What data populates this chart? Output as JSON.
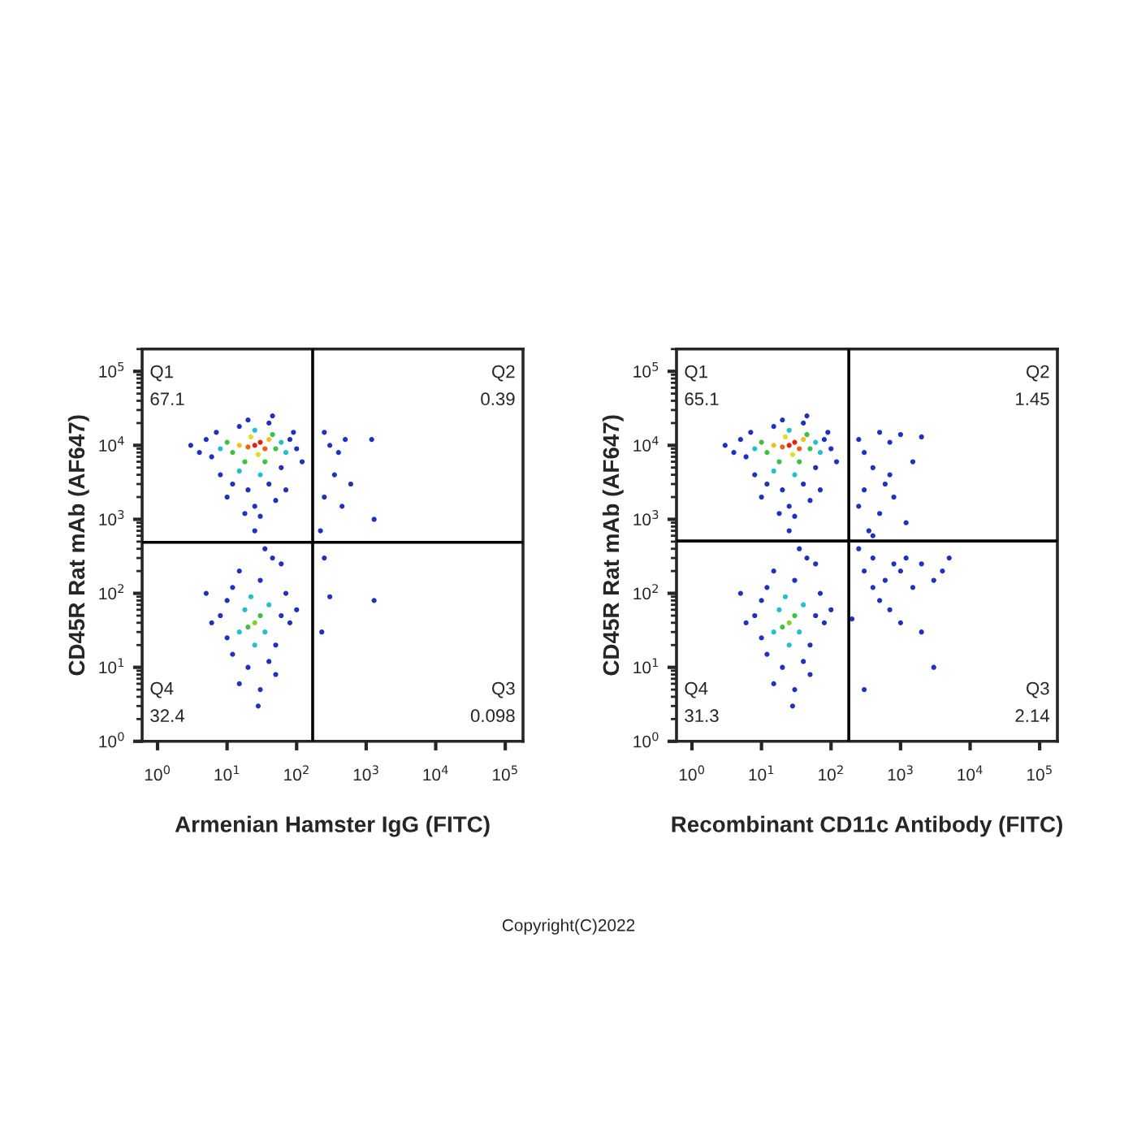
{
  "chart_data": [
    {
      "type": "scatter",
      "xlabel": "Armenian Hamster IgG (FITC)",
      "ylabel": "CD45R Rat mAb (AF647)",
      "log": "xy",
      "marker": "circle",
      "grid": false,
      "legend": false,
      "xlim": [
        0.6,
        180000
      ],
      "ylim": [
        1,
        200000
      ],
      "xticks": [
        {
          "value": 1,
          "label": "10$^{0}$"
        },
        {
          "value": 10,
          "label": "10$^{1}$"
        },
        {
          "value": 100,
          "label": "10$^{2}$"
        },
        {
          "value": 1000,
          "label": "10$^{3}$"
        },
        {
          "value": 10000,
          "label": "10$^{4}$"
        },
        {
          "value": 100000,
          "label": "10$^{5}$"
        }
      ],
      "yticks": [
        {
          "value": 1,
          "label": "10$^{0}$"
        },
        {
          "value": 10,
          "label": "10$^{1}$"
        },
        {
          "value": 100,
          "label": "10$^{2}$"
        },
        {
          "value": 1000,
          "label": "10$^{3}$"
        },
        {
          "value": 10000,
          "label": "10$^{4}$"
        },
        {
          "value": 100000,
          "label": "10$^{5}$"
        }
      ],
      "ref_lines": [
        {
          "axis": "x",
          "value": 170,
          "color": "#000000"
        },
        {
          "axis": "y",
          "value": 490,
          "color": "#000000"
        }
      ],
      "annotations": [
        "Q1\n67.1",
        "Q2\n0.39",
        "Q3\n0.098",
        "Q4\n32.4"
      ],
      "series": [
        {
          "x": [
            5,
            6,
            8,
            12,
            20,
            40,
            60,
            80,
            100,
            90,
            40,
            15,
            7,
            4,
            10,
            25,
            50,
            30,
            18,
            70,
            120,
            3,
            45,
            20,
            250,
            300,
            400,
            500,
            1200,
            350,
            600,
            250,
            450,
            1300,
            220,
            8,
            10,
            12,
            50,
            60,
            70,
            30,
            15,
            45,
            20,
            40,
            10,
            6,
            80,
            35,
            25,
            12,
            30,
            50,
            5,
            100,
            15,
            28,
            60,
            250,
            300,
            1300,
            230,
            12,
            50,
            18,
            35,
            10,
            45,
            8,
            60,
            15,
            30,
            25,
            70,
            15,
            40,
            28,
            22,
            18,
            35,
            15,
            40,
            25,
            22,
            20,
            30,
            25,
            25,
            30,
            20,
            35
          ],
          "values": [
            12000,
            7000,
            4000,
            3000,
            2500,
            3000,
            5000,
            12000,
            9000,
            15000,
            20000,
            18000,
            15000,
            8000,
            2000,
            1500,
            1800,
            1100,
            1200,
            2500,
            6000,
            10000,
            25000,
            22000,
            15000,
            10000,
            8000,
            12000,
            12000,
            4000,
            3000,
            2000,
            1500,
            1000,
            700,
            50,
            25,
            120,
            20,
            50,
            100,
            150,
            200,
            300,
            10,
            12,
            80,
            40,
            40,
            400,
            700,
            15,
            5,
            8,
            100,
            60,
            6,
            3,
            250,
            300,
            90,
            80,
            30,
            8000,
            9000,
            6000,
            6000,
            11000,
            14000,
            9000,
            11000,
            4500,
            4000,
            16000,
            8000,
            10000,
            12000,
            7500,
            13000,
            60,
            30,
            30,
            70,
            20,
            90,
            35,
            50,
            40,
            10000,
            11000,
            9500,
            9000
          ],
          "colors": [
            "#2030c0",
            "#2030c0",
            "#2030c0",
            "#2030c0",
            "#2030c0",
            "#2030c0",
            "#2030c0",
            "#2030c0",
            "#2030c0",
            "#2030c0",
            "#2030c0",
            "#2030c0",
            "#2030c0",
            "#2030c0",
            "#2030c0",
            "#2030c0",
            "#2030c0",
            "#2030c0",
            "#2030c0",
            "#2030c0",
            "#2030c0",
            "#2030c0",
            "#2030c0",
            "#2030c0",
            "#2030c0",
            "#2030c0",
            "#2030c0",
            "#2030c0",
            "#2030c0",
            "#2030c0",
            "#2030c0",
            "#2030c0",
            "#2030c0",
            "#2030c0",
            "#2030c0",
            "#2030c0",
            "#2030c0",
            "#2030c0",
            "#2030c0",
            "#2030c0",
            "#2030c0",
            "#2030c0",
            "#2030c0",
            "#2030c0",
            "#2030c0",
            "#2030c0",
            "#2030c0",
            "#2030c0",
            "#2030c0",
            "#2030c0",
            "#2030c0",
            "#2030c0",
            "#2030c0",
            "#2030c0",
            "#2030c0",
            "#2030c0",
            "#2030c0",
            "#2030c0",
            "#2030c0",
            "#2030c0",
            "#2030c0",
            "#2030c0",
            "#2030c0",
            "#40c040",
            "#40c040",
            "#40c040",
            "#40c040",
            "#40c040",
            "#40c040",
            "#20c0d0",
            "#20c0d0",
            "#20c0d0",
            "#20c0d0",
            "#20c0d0",
            "#20c0d0",
            "#f0c020",
            "#f0c020",
            "#e0e020",
            "#e0e020",
            "#20c0d0",
            "#20c0d0",
            "#20c0d0",
            "#20c0d0",
            "#20c0d0",
            "#20c0d0",
            "#40c040",
            "#40c040",
            "#80d030",
            "#e8200c",
            "#e8200c",
            "#f06010",
            "#f06010"
          ]
        }
      ]
    },
    {
      "type": "scatter",
      "xlabel": "Recombinant CD11c Antibody (FITC)",
      "ylabel": "CD45R Rat mAb (AF647)",
      "log": "xy",
      "marker": "circle",
      "grid": false,
      "legend": false,
      "xlim": [
        0.6,
        180000
      ],
      "ylim": [
        1,
        200000
      ],
      "xticks": [
        {
          "value": 1,
          "label": "10$^{0}$"
        },
        {
          "value": 10,
          "label": "10$^{1}$"
        },
        {
          "value": 100,
          "label": "10$^{2}$"
        },
        {
          "value": 1000,
          "label": "10$^{3}$"
        },
        {
          "value": 10000,
          "label": "10$^{4}$"
        },
        {
          "value": 100000,
          "label": "10$^{5}$"
        }
      ],
      "yticks": [
        {
          "value": 1,
          "label": "10$^{0}$"
        },
        {
          "value": 10,
          "label": "10$^{1}$"
        },
        {
          "value": 100,
          "label": "10$^{2}$"
        },
        {
          "value": 1000,
          "label": "10$^{3}$"
        },
        {
          "value": 10000,
          "label": "10$^{4}$"
        },
        {
          "value": 100000,
          "label": "10$^{5}$"
        }
      ],
      "ref_lines": [
        {
          "axis": "x",
          "value": 180,
          "color": "#000000"
        },
        {
          "axis": "y",
          "value": 510,
          "color": "#000000"
        }
      ],
      "annotations": [
        "Q1\n65.1",
        "Q2\n1.45",
        "Q3\n2.14",
        "Q4\n31.3",
        "Copyright(C)2022"
      ],
      "series": [
        {
          "x": [
            5,
            6,
            8,
            12,
            20,
            40,
            60,
            80,
            100,
            90,
            40,
            15,
            7,
            4,
            10,
            25,
            50,
            30,
            18,
            70,
            120,
            3,
            45,
            20,
            250,
            300,
            500,
            700,
            1000,
            2000,
            400,
            600,
            300,
            800,
            500,
            1200,
            350,
            250,
            400,
            700,
            1500,
            250,
            300,
            400,
            600,
            800,
            1000,
            1500,
            2000,
            3000,
            4000,
            500,
            700,
            1000,
            2000,
            3000,
            300,
            200,
            400,
            5000,
            1200,
            8,
            10,
            12,
            50,
            60,
            70,
            30,
            15,
            45,
            20,
            40,
            10,
            6,
            80,
            35,
            25,
            12,
            30,
            50,
            5,
            100,
            15,
            28,
            60,
            12,
            50,
            18,
            35,
            10,
            45,
            8,
            60,
            15,
            30,
            25,
            70,
            15,
            40,
            28,
            22,
            18,
            35,
            15,
            40,
            25,
            22,
            20,
            30,
            25,
            25,
            30,
            20,
            35
          ],
          "values": [
            12000,
            7000,
            4000,
            3000,
            2500,
            3000,
            5000,
            12000,
            9000,
            15000,
            20000,
            18000,
            15000,
            8000,
            2000,
            1500,
            1800,
            1100,
            1200,
            2500,
            6000,
            10000,
            25000,
            22000,
            12000,
            8000,
            15000,
            11000,
            14000,
            13000,
            5000,
            3000,
            2500,
            2000,
            1200,
            900,
            700,
            1500,
            600,
            4000,
            6000,
            400,
            200,
            300,
            150,
            250,
            200,
            120,
            250,
            150,
            200,
            80,
            60,
            40,
            30,
            10,
            5,
            45,
            120,
            300,
            300,
            50,
            25,
            120,
            20,
            50,
            100,
            150,
            200,
            300,
            10,
            12,
            80,
            40,
            40,
            400,
            700,
            15,
            5,
            8,
            100,
            60,
            6,
            3,
            250,
            8000,
            9000,
            6000,
            6000,
            11000,
            14000,
            9000,
            11000,
            4500,
            4000,
            16000,
            8000,
            10000,
            12000,
            7500,
            13000,
            60,
            30,
            30,
            70,
            20,
            90,
            35,
            50,
            40,
            10000,
            11000,
            9500,
            9000
          ],
          "colors": [
            "#2030c0",
            "#2030c0",
            "#2030c0",
            "#2030c0",
            "#2030c0",
            "#2030c0",
            "#2030c0",
            "#2030c0",
            "#2030c0",
            "#2030c0",
            "#2030c0",
            "#2030c0",
            "#2030c0",
            "#2030c0",
            "#2030c0",
            "#2030c0",
            "#2030c0",
            "#2030c0",
            "#2030c0",
            "#2030c0",
            "#2030c0",
            "#2030c0",
            "#2030c0",
            "#2030c0",
            "#2030c0",
            "#2030c0",
            "#2030c0",
            "#2030c0",
            "#2030c0",
            "#2030c0",
            "#2030c0",
            "#2030c0",
            "#2030c0",
            "#2030c0",
            "#2030c0",
            "#2030c0",
            "#2030c0",
            "#2030c0",
            "#2030c0",
            "#2030c0",
            "#2030c0",
            "#2030c0",
            "#2030c0",
            "#2030c0",
            "#2030c0",
            "#2030c0",
            "#2030c0",
            "#2030c0",
            "#2030c0",
            "#2030c0",
            "#2030c0",
            "#2030c0",
            "#2030c0",
            "#2030c0",
            "#2030c0",
            "#2030c0",
            "#2030c0",
            "#2030c0",
            "#2030c0",
            "#2030c0",
            "#2030c0",
            "#2030c0",
            "#2030c0",
            "#2030c0",
            "#2030c0",
            "#2030c0",
            "#2030c0",
            "#2030c0",
            "#2030c0",
            "#2030c0",
            "#2030c0",
            "#2030c0",
            "#2030c0",
            "#2030c0",
            "#2030c0",
            "#2030c0",
            "#2030c0",
            "#2030c0",
            "#2030c0",
            "#2030c0",
            "#2030c0",
            "#2030c0",
            "#2030c0",
            "#2030c0",
            "#2030c0",
            "#40c040",
            "#40c040",
            "#40c040",
            "#40c040",
            "#40c040",
            "#40c040",
            "#20c0d0",
            "#20c0d0",
            "#20c0d0",
            "#20c0d0",
            "#20c0d0",
            "#20c0d0",
            "#f0c020",
            "#f0c020",
            "#e0e020",
            "#e0e020",
            "#20c0d0",
            "#20c0d0",
            "#20c0d0",
            "#20c0d0",
            "#20c0d0",
            "#20c0d0",
            "#40c040",
            "#40c040",
            "#80d030",
            "#e8200c",
            "#e8200c",
            "#f06010",
            "#f06010"
          ]
        }
      ]
    }
  ]
}
